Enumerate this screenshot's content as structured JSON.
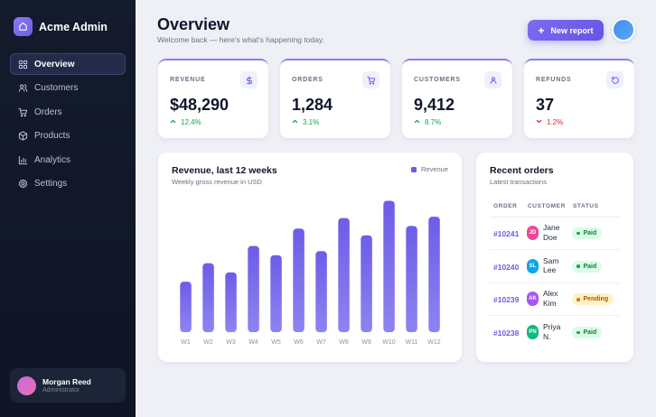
{
  "app": {
    "name": "Acme Admin",
    "accent": "#6d5ce8"
  },
  "sidebar": {
    "items": [
      {
        "label": "Overview",
        "icon": "grid-icon",
        "active": true
      },
      {
        "label": "Customers",
        "icon": "users-icon",
        "active": false
      },
      {
        "label": "Orders",
        "icon": "cart-icon",
        "active": false
      },
      {
        "label": "Products",
        "icon": "box-icon",
        "active": false
      },
      {
        "label": "Analytics",
        "icon": "bar-chart-icon",
        "active": false
      },
      {
        "label": "Settings",
        "icon": "gear-icon",
        "active": false
      }
    ],
    "user": {
      "name": "Morgan Reed",
      "role": "Administrator"
    }
  },
  "header": {
    "title": "Overview",
    "subtitle": "Welcome back — here's what's happening today.",
    "new_report_label": "New report"
  },
  "stats": [
    {
      "label": "REVENUE",
      "value": "$48,290",
      "delta": "12.4%",
      "direction": "up",
      "icon": "dollar-icon"
    },
    {
      "label": "ORDERS",
      "value": "1,284",
      "delta": "3.1%",
      "direction": "up",
      "icon": "cart-icon"
    },
    {
      "label": "CUSTOMERS",
      "value": "9,412",
      "delta": "8.7%",
      "direction": "up",
      "icon": "user-icon"
    },
    {
      "label": "REFUNDS",
      "value": "37",
      "delta": "1.2%",
      "direction": "down",
      "icon": "refresh-icon"
    }
  ],
  "chart_data": {
    "type": "bar",
    "title": "Revenue, last 12 weeks",
    "subtitle": "Weekly gross revenue in USD",
    "categories": [
      "W1",
      "W2",
      "W3",
      "W4",
      "W5",
      "W6",
      "W7",
      "W8",
      "W9",
      "W10",
      "W11",
      "W12"
    ],
    "series": [
      {
        "name": "Revenue",
        "values": [
          38,
          52,
          45,
          65,
          58,
          78,
          61,
          86,
          73,
          99,
          80,
          87
        ],
        "color": "#6d5ce8"
      }
    ],
    "ylim": [
      0,
      100
    ],
    "grid": false,
    "legend": "top-right"
  },
  "orders": {
    "title": "Recent orders",
    "subtitle": "Latest transactions",
    "columns": [
      "ORDER",
      "CUSTOMER",
      "STATUS"
    ],
    "rows": [
      {
        "id": "#10241",
        "initials": "JD",
        "customer": "Jane Doe",
        "status": "Paid",
        "avatar_color": "#ec4899"
      },
      {
        "id": "#10240",
        "initials": "SL",
        "customer": "Sam Lee",
        "status": "Paid",
        "avatar_color": "#0ea5e9"
      },
      {
        "id": "#10239",
        "initials": "AK",
        "customer": "Alex Kim",
        "status": "Pending",
        "avatar_color": "#a855f7"
      },
      {
        "id": "#10238",
        "initials": "PN",
        "customer": "Priya N.",
        "status": "Paid",
        "avatar_color": "#10b981"
      }
    ]
  }
}
